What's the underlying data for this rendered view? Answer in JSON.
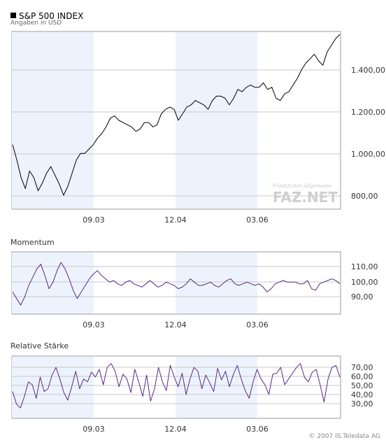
{
  "header": {
    "title": "S&P 500 INDEX",
    "subtitle": "Angaben in USD"
  },
  "watermark": {
    "line1": "Frankfurter Allgemeine",
    "line2": "FAZ.NET"
  },
  "footer": {
    "copyright": "© 2007 IS.Teledata AG"
  },
  "colors": {
    "price_line": "#000000",
    "indicator_line": "#5a2a82",
    "shade": "#edf3fd",
    "grid": "#c8c8c8"
  },
  "chart_data": [
    {
      "type": "line",
      "name": "price",
      "title": "S&P 500 INDEX",
      "ylabel": "Angaben in USD",
      "x_ticks": [
        "09.03",
        "12.04",
        "03.06"
      ],
      "y_ticks": [
        "1.400,00",
        "1.200,00",
        "1.000,00",
        "800,00"
      ],
      "y_tick_values": [
        1400,
        1200,
        1000,
        800
      ],
      "ylim": [
        740,
        1540
      ],
      "grid": true,
      "series": [
        {
          "values": [
            1030,
            960,
            880,
            830,
            910,
            880,
            820,
            855,
            900,
            930,
            890,
            850,
            800,
            840,
            900,
            960,
            990,
            990,
            1010,
            1030,
            1060,
            1080,
            1110,
            1150,
            1160,
            1140,
            1130,
            1120,
            1110,
            1090,
            1100,
            1130,
            1130,
            1110,
            1120,
            1170,
            1190,
            1200,
            1190,
            1140,
            1170,
            1200,
            1210,
            1230,
            1220,
            1210,
            1190,
            1230,
            1250,
            1250,
            1240,
            1210,
            1240,
            1280,
            1270,
            1290,
            1300,
            1290,
            1290,
            1310,
            1280,
            1290,
            1240,
            1230,
            1260,
            1270,
            1300,
            1330,
            1370,
            1400,
            1420,
            1440,
            1410,
            1390,
            1450,
            1480,
            1510,
            1530
          ]
        }
      ]
    },
    {
      "type": "line",
      "name": "momentum",
      "title": "Momentum",
      "x_ticks": [
        "09.03",
        "12.04",
        "03.06"
      ],
      "y_ticks": [
        "110,00",
        "100,00",
        "90,00"
      ],
      "y_tick_values": [
        110,
        100,
        90
      ],
      "ylim": [
        83,
        120
      ],
      "grid": true,
      "series": [
        {
          "values": [
            96,
            92,
            88,
            93,
            100,
            105,
            110,
            113,
            106,
            98,
            102,
            109,
            114,
            110,
            104,
            97,
            92,
            96,
            100,
            104,
            107,
            109,
            106,
            104,
            102,
            103,
            101,
            100,
            102,
            103,
            101,
            100,
            99,
            101,
            103,
            101,
            99,
            100,
            102,
            101,
            100,
            98,
            99,
            101,
            104,
            102,
            100,
            100,
            101,
            102,
            100,
            99,
            101,
            103,
            104,
            101,
            100,
            101,
            102,
            101,
            100,
            101,
            99,
            96,
            98,
            101,
            102,
            103,
            102,
            102,
            102,
            101,
            101,
            103,
            98,
            97,
            101,
            102,
            103,
            104,
            103,
            101
          ]
        }
      ]
    },
    {
      "type": "line",
      "name": "relative_strength",
      "title": "Relative Stärke",
      "x_ticks": [
        "09.03",
        "12.04",
        "03.06"
      ],
      "y_ticks": [
        "70,00",
        "60,00",
        "50,00",
        "40,00",
        "30,00"
      ],
      "y_tick_values": [
        70,
        60,
        50,
        40,
        30
      ],
      "ylim": [
        18,
        81
      ],
      "grid": true,
      "series": [
        {
          "values": [
            45,
            32,
            28,
            40,
            55,
            52,
            38,
            60,
            45,
            48,
            62,
            70,
            58,
            44,
            36,
            50,
            66,
            48,
            58,
            55,
            65,
            60,
            68,
            52,
            70,
            74,
            66,
            50,
            63,
            58,
            44,
            68,
            55,
            40,
            62,
            35,
            48,
            70,
            55,
            46,
            72,
            60,
            50,
            64,
            42,
            58,
            70,
            66,
            48,
            62,
            54,
            45,
            69,
            57,
            66,
            50,
            63,
            72,
            58,
            46,
            38,
            55,
            68,
            58,
            52,
            42,
            63,
            64,
            70,
            52,
            58,
            64,
            70,
            74,
            60,
            55,
            65,
            68,
            52,
            34,
            58,
            70,
            72,
            60
          ]
        }
      ]
    }
  ]
}
